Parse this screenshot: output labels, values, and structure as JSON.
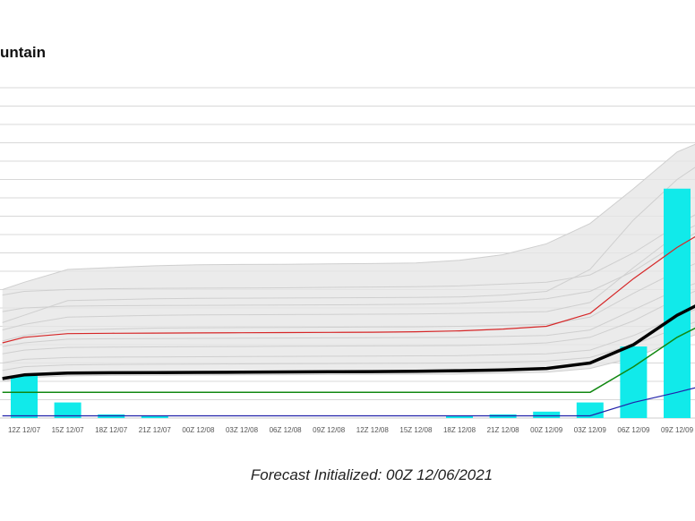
{
  "title": "untain",
  "footer": "Forecast Initialized: 00Z 12/06/2021",
  "chart_data": {
    "type": "line",
    "title": "untain",
    "xlabel": "",
    "ylabel": "",
    "grid": true,
    "categories": [
      "12Z 12/07",
      "15Z 12/07",
      "18Z 12/07",
      "21Z 12/07",
      "00Z 12/08",
      "03Z 12/08",
      "06Z 12/08",
      "09Z 12/08",
      "12Z 12/08",
      "15Z 12/08",
      "18Z 12/08",
      "21Z 12/08",
      "00Z 12/09",
      "03Z 12/09",
      "06Z 12/09",
      "09Z 12/09"
    ],
    "ylim": [
      0,
      18
    ],
    "y_gridlines": [
      0,
      1,
      2,
      3,
      4,
      5,
      6,
      7,
      8,
      9,
      10,
      11,
      12,
      13,
      14,
      15,
      16,
      17,
      18
    ],
    "x_values": [
      -0.5,
      0,
      1,
      2,
      3,
      4,
      5,
      6,
      7,
      8,
      9,
      10,
      11,
      12,
      13,
      14,
      15,
      15.5
    ],
    "bars": {
      "color": "#11eaea",
      "values": [
        2.3,
        0.85,
        0.2,
        0.1,
        0,
        0,
        0,
        0,
        0,
        0,
        0.1,
        0.2,
        0.35,
        0.85,
        3.9,
        12.5
      ]
    },
    "ensemble_members": [
      [
        6.7,
        6.9,
        7.0,
        7.05,
        7.07,
        7.08,
        7.09,
        7.1,
        7.12,
        7.14,
        7.16,
        7.2,
        7.3,
        7.4,
        7.8,
        9.0,
        10.5,
        11.2
      ],
      [
        5.8,
        6.0,
        6.1,
        6.12,
        6.13,
        6.14,
        6.15,
        6.16,
        6.17,
        6.18,
        6.2,
        6.25,
        6.35,
        6.5,
        6.9,
        8.0,
        9.5,
        10.2
      ],
      [
        7.0,
        7.4,
        8.1,
        8.2,
        8.3,
        8.35,
        8.37,
        8.38,
        8.4,
        8.42,
        8.45,
        8.6,
        8.9,
        9.5,
        10.6,
        12.5,
        14.5,
        15.0
      ],
      [
        5.2,
        5.6,
        6.4,
        6.45,
        6.5,
        6.52,
        6.53,
        6.54,
        6.55,
        6.56,
        6.57,
        6.6,
        6.7,
        6.9,
        8.1,
        10.8,
        13.0,
        13.8
      ],
      [
        4.8,
        5.1,
        5.5,
        5.55,
        5.6,
        5.62,
        5.63,
        5.64,
        5.65,
        5.66,
        5.67,
        5.7,
        5.75,
        5.8,
        6.3,
        8.2,
        10.0,
        10.6
      ],
      [
        4.2,
        4.5,
        4.8,
        4.85,
        4.9,
        4.92,
        4.93,
        4.94,
        4.95,
        4.96,
        4.97,
        5.0,
        5.05,
        5.1,
        5.5,
        6.8,
        8.0,
        8.5
      ],
      [
        3.9,
        4.1,
        4.3,
        4.32,
        4.33,
        4.34,
        4.35,
        4.36,
        4.37,
        4.38,
        4.39,
        4.4,
        4.45,
        4.5,
        4.8,
        5.9,
        7.0,
        7.4
      ],
      [
        3.5,
        3.7,
        3.85,
        3.87,
        3.88,
        3.89,
        3.9,
        3.91,
        3.92,
        3.93,
        3.94,
        3.95,
        4.0,
        4.1,
        4.4,
        5.3,
        6.5,
        7.0
      ],
      [
        3.0,
        3.2,
        3.3,
        3.32,
        3.33,
        3.34,
        3.35,
        3.36,
        3.37,
        3.38,
        3.39,
        3.4,
        3.45,
        3.5,
        3.7,
        4.5,
        5.5,
        6.0
      ],
      [
        2.6,
        2.8,
        2.9,
        2.92,
        2.93,
        2.94,
        2.95,
        2.96,
        2.97,
        2.98,
        2.99,
        3.0,
        3.05,
        3.1,
        3.3,
        4.0,
        4.9,
        5.3
      ],
      [
        2.0,
        2.2,
        2.3,
        2.32,
        2.33,
        2.34,
        2.35,
        2.36,
        2.37,
        2.38,
        2.39,
        2.4,
        2.45,
        2.5,
        2.7,
        3.3,
        4.2,
        4.6
      ]
    ],
    "series": [
      {
        "color": "#d62728",
        "width": 1.2,
        "values": [
          4.1,
          4.4,
          4.6,
          4.62,
          4.63,
          4.64,
          4.65,
          4.66,
          4.67,
          4.68,
          4.7,
          4.75,
          4.85,
          5.0,
          5.7,
          7.6,
          9.3,
          10.0
        ]
      },
      {
        "color": "#000000",
        "width": 3.5,
        "values": [
          2.15,
          2.35,
          2.45,
          2.47,
          2.48,
          2.49,
          2.5,
          2.51,
          2.52,
          2.53,
          2.55,
          2.58,
          2.62,
          2.7,
          3.0,
          4.0,
          5.6,
          6.2
        ]
      },
      {
        "color": "#118811",
        "width": 1.5,
        "values": [
          1.4,
          1.4,
          1.4,
          1.4,
          1.4,
          1.4,
          1.4,
          1.4,
          1.4,
          1.4,
          1.4,
          1.4,
          1.4,
          1.4,
          1.4,
          2.8,
          4.4,
          5.0
        ]
      },
      {
        "color": "#2222aa",
        "width": 1.2,
        "values": [
          0.12,
          0.12,
          0.12,
          0.12,
          0.12,
          0.12,
          0.12,
          0.12,
          0.12,
          0.12,
          0.12,
          0.12,
          0.12,
          0.12,
          0.12,
          0.85,
          1.4,
          1.7
        ]
      }
    ],
    "colors": {
      "ensemble": "#cfcfcf",
      "spread_fill": "#e6e6e6",
      "grid": "#d8d8d8"
    }
  }
}
